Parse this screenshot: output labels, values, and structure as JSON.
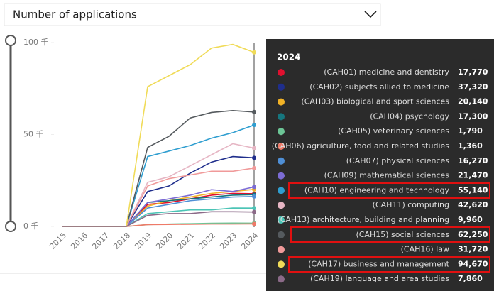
{
  "chart_data": {
    "type": "line",
    "title": "Number of applications",
    "categories": [
      "2015",
      "2016",
      "2017",
      "2018",
      "2019",
      "2020",
      "2021",
      "2022",
      "2023",
      "2024"
    ],
    "ylim": [
      0,
      100000
    ],
    "yticks": [
      {
        "value": 0,
        "label": "0 千"
      },
      {
        "value": 50000,
        "label": "50 千"
      },
      {
        "value": 100000,
        "label": "100 千"
      }
    ],
    "series": [
      {
        "name": "(CAH01) medicine and dentistry",
        "color": "#e0102f",
        "values": [
          0,
          0,
          0,
          0,
          12000,
          13000,
          15000,
          17000,
          18000,
          17770
        ],
        "value_labels": [
          null,
          null,
          null,
          null,
          null,
          null,
          null,
          null,
          null,
          "17,770"
        ]
      },
      {
        "name": "(CAH02) subjects allied to medicine",
        "color": "#1f2e8c",
        "values": [
          0,
          0,
          0,
          0,
          19000,
          22000,
          29000,
          35000,
          38000,
          37320
        ],
        "value_labels": [
          null,
          null,
          null,
          null,
          null,
          null,
          null,
          null,
          null,
          "37,320"
        ]
      },
      {
        "name": "(CAH03) biological and sport sciences",
        "color": "#f2b226",
        "values": [
          0,
          0,
          0,
          0,
          11000,
          14000,
          16000,
          18000,
          19000,
          20140
        ],
        "value_labels": [
          null,
          null,
          null,
          null,
          null,
          null,
          null,
          null,
          null,
          "20,140"
        ]
      },
      {
        "name": "(CAH04) psychology",
        "color": "#16767e",
        "values": [
          0,
          0,
          0,
          0,
          13000,
          14000,
          15000,
          16000,
          17000,
          17300
        ],
        "value_labels": [
          null,
          null,
          null,
          null,
          null,
          null,
          null,
          null,
          null,
          "17,300"
        ]
      },
      {
        "name": "(CAH05) veterinary sciences",
        "color": "#6cc596",
        "values": [
          0,
          0,
          0,
          0,
          1000,
          1300,
          1500,
          1700,
          1800,
          1790
        ],
        "value_labels": [
          null,
          null,
          null,
          null,
          null,
          null,
          null,
          null,
          null,
          "1,790"
        ]
      },
      {
        "name": "(CAH06) agriculture, food and related studies",
        "color": "#ee7a68",
        "values": [
          0,
          0,
          0,
          0,
          1000,
          1100,
          1200,
          1300,
          1300,
          1360
        ],
        "value_labels": [
          null,
          null,
          null,
          null,
          null,
          null,
          null,
          null,
          null,
          "1,360"
        ]
      },
      {
        "name": "(CAH07) physical sciences",
        "color": "#4f8fd6",
        "values": [
          0,
          0,
          0,
          0,
          10000,
          12000,
          14000,
          15000,
          16000,
          16270
        ],
        "value_labels": [
          null,
          null,
          null,
          null,
          null,
          null,
          null,
          null,
          null,
          "16,270"
        ]
      },
      {
        "name": "(CAH09) mathematical sciences",
        "color": "#7c6cd4",
        "values": [
          0,
          0,
          0,
          0,
          13000,
          15000,
          17000,
          20000,
          19000,
          21470
        ],
        "value_labels": [
          null,
          null,
          null,
          null,
          null,
          null,
          null,
          null,
          null,
          "21,470"
        ]
      },
      {
        "name": "(CAH10) engineering and technology",
        "color": "#2f9ed0",
        "values": [
          0,
          0,
          0,
          0,
          38000,
          41000,
          44000,
          48000,
          51000,
          55140
        ],
        "value_labels": [
          null,
          null,
          null,
          null,
          null,
          null,
          null,
          null,
          null,
          "55,140"
        ]
      },
      {
        "name": "(CAH11) computing",
        "color": "#e6b6c4",
        "values": [
          0,
          0,
          0,
          0,
          24000,
          27000,
          33000,
          39000,
          45000,
          42620
        ],
        "value_labels": [
          null,
          null,
          null,
          null,
          null,
          null,
          null,
          null,
          null,
          "42,620"
        ]
      },
      {
        "name": "(CAH13) architecture, building and planning",
        "color": "#4cc4b6",
        "values": [
          0,
          0,
          0,
          0,
          7000,
          8000,
          9000,
          9000,
          10000,
          9960
        ],
        "value_labels": [
          null,
          null,
          null,
          null,
          null,
          null,
          null,
          null,
          null,
          "9,960"
        ]
      },
      {
        "name": "(CAH15) social sciences",
        "color": "#555a5e",
        "values": [
          0,
          0,
          0,
          0,
          43000,
          49000,
          59000,
          62000,
          63000,
          62250
        ],
        "value_labels": [
          null,
          null,
          null,
          null,
          null,
          null,
          null,
          null,
          null,
          "62,250"
        ]
      },
      {
        "name": "(CAH16) law",
        "color": "#f09a9a",
        "values": [
          0,
          0,
          0,
          0,
          22000,
          26000,
          28000,
          30000,
          30000,
          31720
        ],
        "value_labels": [
          null,
          null,
          null,
          null,
          null,
          null,
          null,
          null,
          null,
          "31,720"
        ]
      },
      {
        "name": "(CAH17) business and management",
        "color": "#f0db58",
        "values": [
          0,
          0,
          0,
          0,
          76000,
          82000,
          88000,
          97000,
          99000,
          94670
        ],
        "value_labels": [
          null,
          null,
          null,
          null,
          null,
          null,
          null,
          null,
          null,
          "94,670"
        ]
      },
      {
        "name": "(CAH19) language and area studies",
        "color": "#8b6a88",
        "values": [
          0,
          0,
          0,
          0,
          6000,
          7000,
          7000,
          8000,
          8000,
          7860
        ],
        "value_labels": [
          null,
          null,
          null,
          null,
          null,
          null,
          null,
          null,
          null,
          "7,860"
        ]
      }
    ]
  }
}
